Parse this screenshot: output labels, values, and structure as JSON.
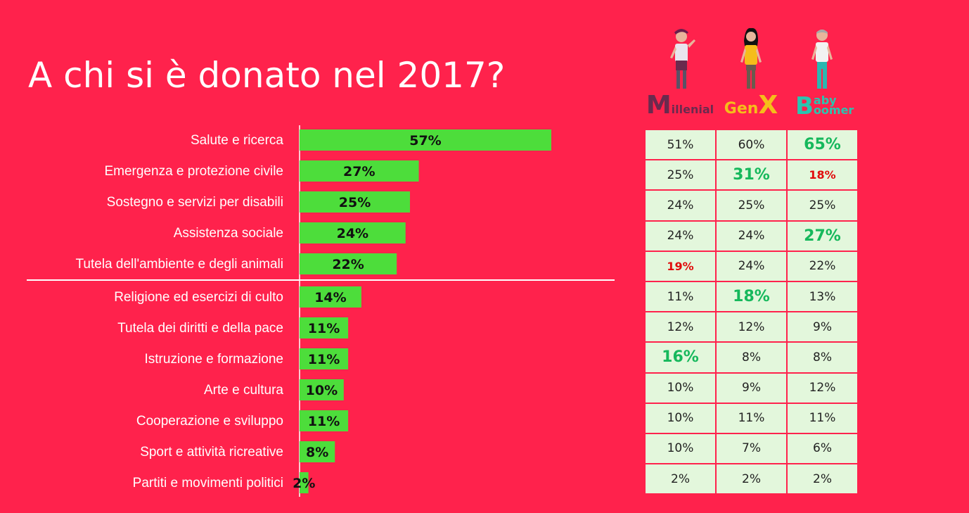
{
  "title": "A chi si è donato nel 2017?",
  "chart_data": {
    "type": "bar",
    "orientation": "horizontal",
    "categories": [
      "Salute e ricerca",
      "Emergenza e protezione civile",
      "Sostegno e servizi per disabili",
      "Assistenza sociale",
      "Tutela dell'ambiente e degli animali",
      "Religione ed esercizi di culto",
      "Tutela dei diritti e della pace",
      "Istruzione e formazione",
      "Arte e cultura",
      "Cooperazione e sviluppo",
      "Sport e attività ricreative",
      "Partiti e movimenti politici"
    ],
    "values": [
      57,
      27,
      25,
      24,
      22,
      14,
      11,
      11,
      10,
      11,
      8,
      2
    ],
    "value_labels": [
      "57%",
      "27%",
      "25%",
      "24%",
      "22%",
      "14%",
      "11%",
      "11%",
      "10%",
      "11%",
      "8%",
      "2%"
    ],
    "bar_color": "#4ddd3b",
    "title": "A chi si è donato nel 2017?",
    "xlabel": "",
    "ylabel": "",
    "xlim": [
      0,
      100
    ],
    "grid": false,
    "legend": "none"
  },
  "generations": {
    "headers": [
      {
        "initial": "M",
        "rest": "illenial",
        "color": "#6b2a4e"
      },
      {
        "initial": "Gen",
        "rest": "X",
        "color": "#f5bd1a"
      },
      {
        "initial": "B",
        "rest": "aby",
        "rest2": "oomer",
        "color": "#29c6b0"
      }
    ],
    "rows": [
      [
        {
          "v": "51%",
          "s": ""
        },
        {
          "v": "60%",
          "s": ""
        },
        {
          "v": "65%",
          "s": "hi"
        }
      ],
      [
        {
          "v": "25%",
          "s": ""
        },
        {
          "v": "31%",
          "s": "hi"
        },
        {
          "v": "18%",
          "s": "lo"
        }
      ],
      [
        {
          "v": "24%",
          "s": ""
        },
        {
          "v": "25%",
          "s": ""
        },
        {
          "v": "25%",
          "s": ""
        }
      ],
      [
        {
          "v": "24%",
          "s": ""
        },
        {
          "v": "24%",
          "s": ""
        },
        {
          "v": "27%",
          "s": "hi"
        }
      ],
      [
        {
          "v": "19%",
          "s": "lo"
        },
        {
          "v": "24%",
          "s": ""
        },
        {
          "v": "22%",
          "s": ""
        }
      ],
      [
        {
          "v": "11%",
          "s": ""
        },
        {
          "v": "18%",
          "s": "hi"
        },
        {
          "v": "13%",
          "s": ""
        }
      ],
      [
        {
          "v": "12%",
          "s": ""
        },
        {
          "v": "12%",
          "s": ""
        },
        {
          "v": "9%",
          "s": ""
        }
      ],
      [
        {
          "v": "16%",
          "s": "hi"
        },
        {
          "v": "8%",
          "s": ""
        },
        {
          "v": "8%",
          "s": ""
        }
      ],
      [
        {
          "v": "10%",
          "s": ""
        },
        {
          "v": "9%",
          "s": ""
        },
        {
          "v": "12%",
          "s": ""
        }
      ],
      [
        {
          "v": "10%",
          "s": ""
        },
        {
          "v": "11%",
          "s": ""
        },
        {
          "v": "11%",
          "s": ""
        }
      ],
      [
        {
          "v": "10%",
          "s": ""
        },
        {
          "v": "7%",
          "s": ""
        },
        {
          "v": "6%",
          "s": ""
        }
      ],
      [
        {
          "v": "2%",
          "s": ""
        },
        {
          "v": "2%",
          "s": ""
        },
        {
          "v": "2%",
          "s": ""
        }
      ]
    ]
  },
  "colors": {
    "background": "#ff224c",
    "highlight_high": "#16b85c",
    "highlight_low": "#e10b0b",
    "cell_bg": "#e3f7dc"
  }
}
